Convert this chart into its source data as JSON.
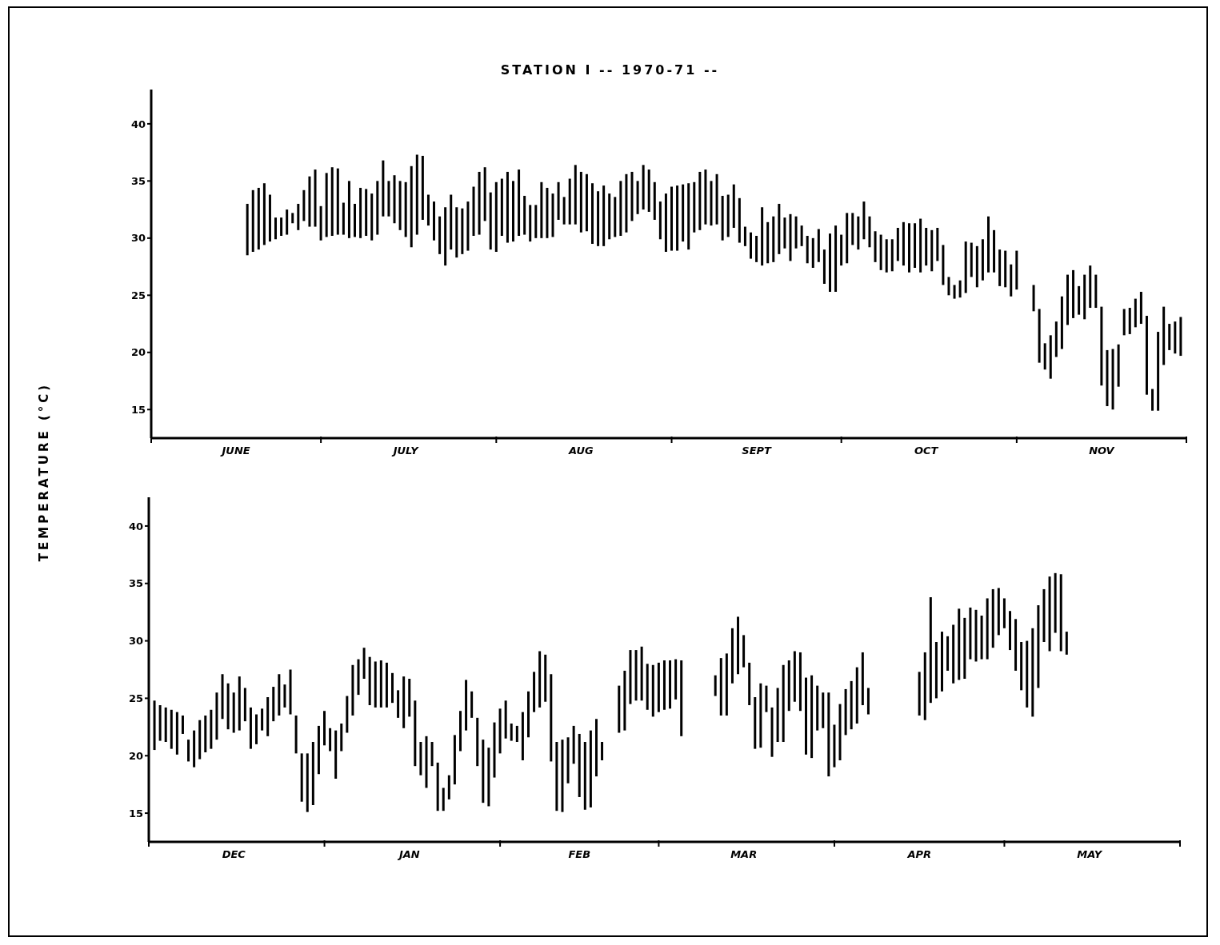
{
  "chart_data": [
    {
      "type": "bar",
      "title": "STATION I -- 1970-71 --",
      "ylabel": "TEMPERATURE (°C)",
      "color": "#000000",
      "xlim": [
        "1970-06-01",
        "1970-12-01"
      ],
      "xticks": [
        {
          "value": "1970-06-01",
          "label": null
        },
        {
          "value": "1970-06-16",
          "label": "JUNE"
        },
        {
          "value": "1970-07-01",
          "label": null
        },
        {
          "value": "1970-07-16",
          "label": "JULY"
        },
        {
          "value": "1970-08-01",
          "label": null
        },
        {
          "value": "1970-08-16",
          "label": "AUG"
        },
        {
          "value": "1970-09-01",
          "label": null
        },
        {
          "value": "1970-09-16",
          "label": "SEPT"
        },
        {
          "value": "1970-10-01",
          "label": null
        },
        {
          "value": "1970-10-16",
          "label": "OCT"
        },
        {
          "value": "1970-11-01",
          "label": null
        },
        {
          "value": "1970-11-16",
          "label": "NOV"
        },
        {
          "value": "1970-12-01",
          "label": null
        }
      ],
      "ylim": [
        12.5,
        43
      ],
      "yticks": [
        15,
        20,
        25,
        30,
        35,
        40
      ],
      "x": [
        "1970-06-18",
        "1970-06-19",
        "1970-06-20",
        "1970-06-21",
        "1970-06-22",
        "1970-06-23",
        "1970-06-24",
        "1970-06-25",
        "1970-06-26",
        "1970-06-27",
        "1970-06-28",
        "1970-06-29",
        "1970-06-30",
        "1970-07-01",
        "1970-07-02",
        "1970-07-03",
        "1970-07-04",
        "1970-07-05",
        "1970-07-06",
        "1970-07-07",
        "1970-07-08",
        "1970-07-09",
        "1970-07-10",
        "1970-07-11",
        "1970-07-12",
        "1970-07-13",
        "1970-07-14",
        "1970-07-15",
        "1970-07-16",
        "1970-07-17",
        "1970-07-18",
        "1970-07-19",
        "1970-07-20",
        "1970-07-21",
        "1970-07-22",
        "1970-07-23",
        "1970-07-24",
        "1970-07-25",
        "1970-07-26",
        "1970-07-27",
        "1970-07-28",
        "1970-07-29",
        "1970-07-30",
        "1970-07-31",
        "1970-08-01",
        "1970-08-02",
        "1970-08-03",
        "1970-08-04",
        "1970-08-05",
        "1970-08-06",
        "1970-08-07",
        "1970-08-08",
        "1970-08-09",
        "1970-08-10",
        "1970-08-11",
        "1970-08-12",
        "1970-08-13",
        "1970-08-14",
        "1970-08-15",
        "1970-08-16",
        "1970-08-17",
        "1970-08-18",
        "1970-08-19",
        "1970-08-20",
        "1970-08-21",
        "1970-08-22",
        "1970-08-23",
        "1970-08-24",
        "1970-08-25",
        "1970-08-26",
        "1970-08-27",
        "1970-08-28",
        "1970-08-29",
        "1970-08-30",
        "1970-08-31",
        "1970-09-01",
        "1970-09-02",
        "1970-09-03",
        "1970-09-04",
        "1970-09-05",
        "1970-09-06",
        "1970-09-07",
        "1970-09-08",
        "1970-09-09",
        "1970-09-10",
        "1970-09-11",
        "1970-09-12",
        "1970-09-13",
        "1970-09-14",
        "1970-09-15",
        "1970-09-16",
        "1970-09-17",
        "1970-09-18",
        "1970-09-19",
        "1970-09-20",
        "1970-09-21",
        "1970-09-22",
        "1970-09-23",
        "1970-09-24",
        "1970-09-25",
        "1970-09-26",
        "1970-09-27",
        "1970-09-28",
        "1970-09-29",
        "1970-09-30",
        "1970-10-01",
        "1970-10-02",
        "1970-10-03",
        "1970-10-04",
        "1970-10-05",
        "1970-10-06",
        "1970-10-07",
        "1970-10-08",
        "1970-10-09",
        "1970-10-10",
        "1970-10-11",
        "1970-10-12",
        "1970-10-13",
        "1970-10-14",
        "1970-10-15",
        "1970-10-16",
        "1970-10-17",
        "1970-10-18",
        "1970-10-19",
        "1970-10-20",
        "1970-10-21",
        "1970-10-22",
        "1970-10-23",
        "1970-10-24",
        "1970-10-25",
        "1970-10-26",
        "1970-10-27",
        "1970-10-28",
        "1970-10-29",
        "1970-10-30",
        "1970-10-31",
        "1970-11-01",
        "1970-11-04",
        "1970-11-05",
        "1970-11-06",
        "1970-11-07",
        "1970-11-08",
        "1970-11-09",
        "1970-11-10",
        "1970-11-11",
        "1970-11-12",
        "1970-11-13",
        "1970-11-14",
        "1970-11-15",
        "1970-11-16",
        "1970-11-17",
        "1970-11-18",
        "1970-11-19",
        "1970-11-20",
        "1970-11-21",
        "1970-11-22",
        "1970-11-23",
        "1970-11-24",
        "1970-11-25",
        "1970-11-26",
        "1970-11-27",
        "1970-11-28",
        "1970-11-29",
        "1970-11-30"
      ],
      "base": [
        28.5,
        28.8,
        29.0,
        29.4,
        29.7,
        29.9,
        30.2,
        30.3,
        31.3,
        30.7,
        31.5,
        31.0,
        31.0,
        29.8,
        30.1,
        30.2,
        30.3,
        30.3,
        30.0,
        30.1,
        30.0,
        30.2,
        29.8,
        30.3,
        31.9,
        31.9,
        31.3,
        30.7,
        30.1,
        29.2,
        30.3,
        31.6,
        31.1,
        29.8,
        28.6,
        27.6,
        29.0,
        28.3,
        28.6,
        28.9,
        30.2,
        30.3,
        31.5,
        29.0,
        28.8,
        30.2,
        29.6,
        29.7,
        30.2,
        30.3,
        29.7,
        30.0,
        30.0,
        30.0,
        30.1,
        31.6,
        31.2,
        31.2,
        31.2,
        30.5,
        30.6,
        29.5,
        29.3,
        29.3,
        29.9,
        30.1,
        30.2,
        30.5,
        31.5,
        32.1,
        32.5,
        32.3,
        31.6,
        29.9,
        28.8,
        28.9,
        28.9,
        29.7,
        29.0,
        30.5,
        30.7,
        31.2,
        31.1,
        31.2,
        29.8,
        30.1,
        30.9,
        29.6,
        29.3,
        28.2,
        27.9,
        27.6,
        27.8,
        27.9,
        28.6,
        29.1,
        28.0,
        29.1,
        29.3,
        27.8,
        27.4,
        27.9,
        26.0,
        25.3,
        25.3,
        27.6,
        27.8,
        29.4,
        29.0,
        29.9,
        29.2,
        27.9,
        27.2,
        27.0,
        27.1,
        28.0,
        27.6,
        27.0,
        27.4,
        27.0,
        27.6,
        27.1,
        28.0,
        25.9,
        25.0,
        24.7,
        24.8,
        25.2,
        26.6,
        25.7,
        26.3,
        27.0,
        27.0,
        25.8,
        25.7,
        24.9,
        25.5,
        23.6,
        19.1,
        18.5,
        17.7,
        19.6,
        20.3,
        22.4,
        23.0,
        23.3,
        22.9,
        23.9,
        23.9,
        17.1,
        15.3,
        15.0,
        17.0,
        21.5,
        21.6,
        22.2,
        22.5,
        16.3,
        14.9,
        14.9,
        18.9,
        20.2,
        19.9,
        19.7
      ],
      "values": [
        4.5,
        5.4,
        5.4,
        5.4,
        4.1,
        1.9,
        1.6,
        2.2,
        0.9,
        2.3,
        2.7,
        4.4,
        5.0,
        3.0,
        5.6,
        6.0,
        5.8,
        2.8,
        5.0,
        2.9,
        4.4,
        4.1,
        4.1,
        4.7,
        4.9,
        3.1,
        4.2,
        4.3,
        4.8,
        7.1,
        7.0,
        5.6,
        2.7,
        3.4,
        3.3,
        5.1,
        4.8,
        4.4,
        4.0,
        4.3,
        4.3,
        5.5,
        4.7,
        5.0,
        6.1,
        5.0,
        6.2,
        5.3,
        5.8,
        3.4,
        3.2,
        2.9,
        4.9,
        4.4,
        3.8,
        3.3,
        2.4,
        4.0,
        5.2,
        5.3,
        5.0,
        5.3,
        4.8,
        5.3,
        4.0,
        3.5,
        4.8,
        5.1,
        4.3,
        2.9,
        3.9,
        3.7,
        3.3,
        3.3,
        5.1,
        5.6,
        5.7,
        5.0,
        5.8,
        4.4,
        5.1,
        4.8,
        3.9,
        4.4,
        3.9,
        3.7,
        3.8,
        3.9,
        1.7,
        2.3,
        2.3,
        5.1,
        3.6,
        4.0,
        4.4,
        2.7,
        4.1,
        2.8,
        1.8,
        2.4,
        2.6,
        2.9,
        3.0,
        5.1,
        5.8,
        2.7,
        4.4,
        2.8,
        2.9,
        3.3,
        2.7,
        2.7,
        3.1,
        2.9,
        2.8,
        2.9,
        3.8,
        4.3,
        3.9,
        4.7,
        3.3,
        3.6,
        2.9,
        3.5,
        1.6,
        1.2,
        1.5,
        4.5,
        3.0,
        3.6,
        3.6,
        4.9,
        3.7,
        3.2,
        3.2,
        2.8,
        3.4,
        2.3,
        4.7,
        2.3,
        3.8,
        3.1,
        4.6,
        4.4,
        4.2,
        2.5,
        3.9,
        3.7,
        2.9,
        6.9,
        4.9,
        5.3,
        3.7,
        2.3,
        2.3,
        2.5,
        2.8,
        6.9,
        1.9,
        6.9,
        5.1,
        2.3,
        2.8,
        3.4
      ]
    },
    {
      "type": "bar",
      "color": "#000000",
      "xlim": [
        "1970-12-01",
        "1971-06-01"
      ],
      "xticks": [
        {
          "value": "1970-12-01",
          "label": null
        },
        {
          "value": "1970-12-16",
          "label": "DEC"
        },
        {
          "value": "1971-01-01",
          "label": null
        },
        {
          "value": "1971-01-16",
          "label": "JAN"
        },
        {
          "value": "1971-02-01",
          "label": null
        },
        {
          "value": "1971-02-15",
          "label": "FEB"
        },
        {
          "value": "1971-03-01",
          "label": null
        },
        {
          "value": "1971-03-16",
          "label": "MAR"
        },
        {
          "value": "1971-04-01",
          "label": null
        },
        {
          "value": "1971-04-16",
          "label": "APR"
        },
        {
          "value": "1971-05-01",
          "label": null
        },
        {
          "value": "1971-05-16",
          "label": "MAY"
        },
        {
          "value": "1971-06-01",
          "label": null
        }
      ],
      "ylim": [
        12.5,
        42.5
      ],
      "yticks": [
        15,
        20,
        25,
        30,
        35,
        40
      ],
      "x": [
        "1970-12-02",
        "1970-12-03",
        "1970-12-04",
        "1970-12-05",
        "1970-12-06",
        "1970-12-07",
        "1970-12-08",
        "1970-12-09",
        "1970-12-10",
        "1970-12-11",
        "1970-12-12",
        "1970-12-13",
        "1970-12-14",
        "1970-12-15",
        "1970-12-16",
        "1970-12-17",
        "1970-12-18",
        "1970-12-19",
        "1970-12-20",
        "1970-12-21",
        "1970-12-22",
        "1970-12-23",
        "1970-12-24",
        "1970-12-25",
        "1970-12-26",
        "1970-12-27",
        "1970-12-28",
        "1970-12-29",
        "1970-12-30",
        "1970-12-31",
        "1971-01-01",
        "1971-01-02",
        "1971-01-03",
        "1971-01-04",
        "1971-01-05",
        "1971-01-06",
        "1971-01-07",
        "1971-01-08",
        "1971-01-09",
        "1971-01-10",
        "1971-01-11",
        "1971-01-12",
        "1971-01-13",
        "1971-01-14",
        "1971-01-15",
        "1971-01-16",
        "1971-01-17",
        "1971-01-18",
        "1971-01-19",
        "1971-01-20",
        "1971-01-21",
        "1971-01-22",
        "1971-01-23",
        "1971-01-24",
        "1971-01-25",
        "1971-01-26",
        "1971-01-27",
        "1971-01-28",
        "1971-01-29",
        "1971-01-30",
        "1971-01-31",
        "1971-02-01",
        "1971-02-02",
        "1971-02-03",
        "1971-02-04",
        "1971-02-05",
        "1971-02-06",
        "1971-02-07",
        "1971-02-08",
        "1971-02-09",
        "1971-02-10",
        "1971-02-11",
        "1971-02-12",
        "1971-02-13",
        "1971-02-14",
        "1971-02-15",
        "1971-02-16",
        "1971-02-17",
        "1971-02-18",
        "1971-02-19",
        "1971-02-22",
        "1971-02-23",
        "1971-02-24",
        "1971-02-25",
        "1971-02-26",
        "1971-02-27",
        "1971-02-28",
        "1971-03-01",
        "1971-03-02",
        "1971-03-03",
        "1971-03-04",
        "1971-03-05",
        "1971-03-11",
        "1971-03-12",
        "1971-03-13",
        "1971-03-14",
        "1971-03-15",
        "1971-03-16",
        "1971-03-17",
        "1971-03-18",
        "1971-03-19",
        "1971-03-20",
        "1971-03-21",
        "1971-03-22",
        "1971-03-23",
        "1971-03-24",
        "1971-03-25",
        "1971-03-26",
        "1971-03-27",
        "1971-03-28",
        "1971-03-29",
        "1971-03-30",
        "1971-03-31",
        "1971-04-01",
        "1971-04-02",
        "1971-04-03",
        "1971-04-04",
        "1971-04-05",
        "1971-04-06",
        "1971-04-07",
        "1971-04-16",
        "1971-04-17",
        "1971-04-18",
        "1971-04-19",
        "1971-04-20",
        "1971-04-21",
        "1971-04-22",
        "1971-04-23",
        "1971-04-24",
        "1971-04-25",
        "1971-04-26",
        "1971-04-27",
        "1971-04-28",
        "1971-04-29",
        "1971-04-30",
        "1971-05-01",
        "1971-05-02",
        "1971-05-03",
        "1971-05-04",
        "1971-05-05",
        "1971-05-06",
        "1971-05-07",
        "1971-05-08",
        "1971-05-09",
        "1971-05-10",
        "1971-05-11",
        "1971-05-12"
      ],
      "base": [
        20.5,
        21.3,
        21.2,
        20.6,
        20.1,
        21.9,
        19.5,
        19.0,
        19.7,
        20.3,
        20.6,
        21.4,
        23.2,
        22.3,
        22.0,
        22.2,
        23.0,
        20.6,
        21.0,
        22.2,
        21.7,
        23.0,
        23.5,
        24.2,
        23.6,
        20.2,
        16.0,
        15.1,
        15.7,
        18.4,
        20.9,
        20.4,
        18.0,
        20.4,
        22.0,
        23.5,
        25.3,
        26.7,
        24.4,
        24.2,
        24.2,
        24.2,
        24.6,
        23.3,
        22.4,
        23.4,
        19.1,
        18.3,
        17.2,
        19.1,
        15.2,
        15.2,
        16.2,
        17.5,
        20.4,
        22.2,
        23.3,
        19.1,
        15.9,
        15.6,
        18.1,
        20.2,
        21.5,
        21.3,
        21.2,
        19.6,
        21.6,
        23.8,
        24.2,
        24.7,
        19.5,
        15.2,
        15.1,
        17.6,
        19.3,
        16.4,
        15.3,
        15.5,
        18.2,
        19.6,
        22.0,
        22.2,
        24.5,
        24.8,
        24.8,
        24.0,
        23.4,
        23.8,
        24.0,
        24.1,
        24.9,
        21.7,
        25.2,
        23.5,
        23.5,
        26.3,
        27.1,
        27.7,
        24.4,
        20.6,
        20.7,
        23.8,
        19.9,
        21.2,
        21.2,
        23.9,
        24.7,
        23.9,
        20.1,
        19.8,
        22.2,
        22.4,
        18.2,
        19.0,
        19.6,
        21.8,
        22.3,
        22.8,
        24.4,
        23.6,
        23.5,
        23.1,
        24.6,
        25.0,
        25.6,
        27.4,
        26.3,
        26.6,
        26.7,
        28.4,
        28.2,
        28.4,
        28.4,
        29.4,
        30.5,
        31.1,
        29.2,
        27.4,
        25.7,
        24.2,
        23.4,
        25.9,
        29.9,
        29.1,
        30.7,
        29.1,
        28.8
      ],
      "values": [
        4.3,
        3.1,
        3.0,
        3.4,
        3.7,
        1.6,
        1.9,
        3.2,
        3.4,
        3.2,
        3.4,
        4.1,
        3.9,
        4.0,
        3.5,
        4.7,
        2.9,
        3.6,
        2.6,
        1.9,
        3.4,
        3.0,
        3.6,
        2.0,
        3.9,
        3.3,
        4.2,
        5.1,
        5.5,
        4.2,
        3.0,
        2.0,
        4.2,
        2.4,
        3.2,
        4.4,
        3.1,
        2.7,
        4.2,
        4.0,
        4.1,
        3.9,
        2.6,
        2.4,
        4.5,
        3.3,
        5.7,
        2.9,
        4.5,
        2.1,
        4.2,
        2.0,
        2.1,
        4.3,
        3.5,
        4.4,
        2.3,
        4.2,
        5.5,
        5.1,
        4.8,
        3.9,
        3.3,
        1.5,
        1.4,
        4.2,
        4.0,
        3.5,
        4.9,
        4.1,
        7.6,
        6.0,
        6.3,
        4.0,
        3.3,
        5.5,
        5.9,
        6.7,
        5.0,
        1.6,
        4.1,
        5.2,
        4.7,
        4.4,
        4.7,
        4.0,
        4.5,
        4.3,
        4.3,
        4.2,
        3.5,
        6.6,
        1.8,
        5.0,
        5.4,
        4.8,
        5.0,
        2.8,
        3.7,
        4.5,
        5.6,
        2.3,
        4.3,
        4.7,
        6.7,
        4.4,
        4.4,
        5.1,
        6.7,
        7.2,
        3.9,
        3.1,
        7.3,
        3.7,
        4.9,
        4.0,
        4.2,
        4.9,
        4.6,
        2.3,
        3.8,
        5.9,
        9.2,
        4.9,
        5.2,
        3.0,
        5.1,
        6.2,
        5.3,
        4.5,
        4.5,
        3.8,
        5.3,
        5.1,
        4.1,
        2.6,
        3.4,
        4.5,
        4.2,
        5.8,
        7.7,
        7.2,
        4.6,
        6.5,
        5.2,
        6.7,
        2.0
      ]
    }
  ]
}
